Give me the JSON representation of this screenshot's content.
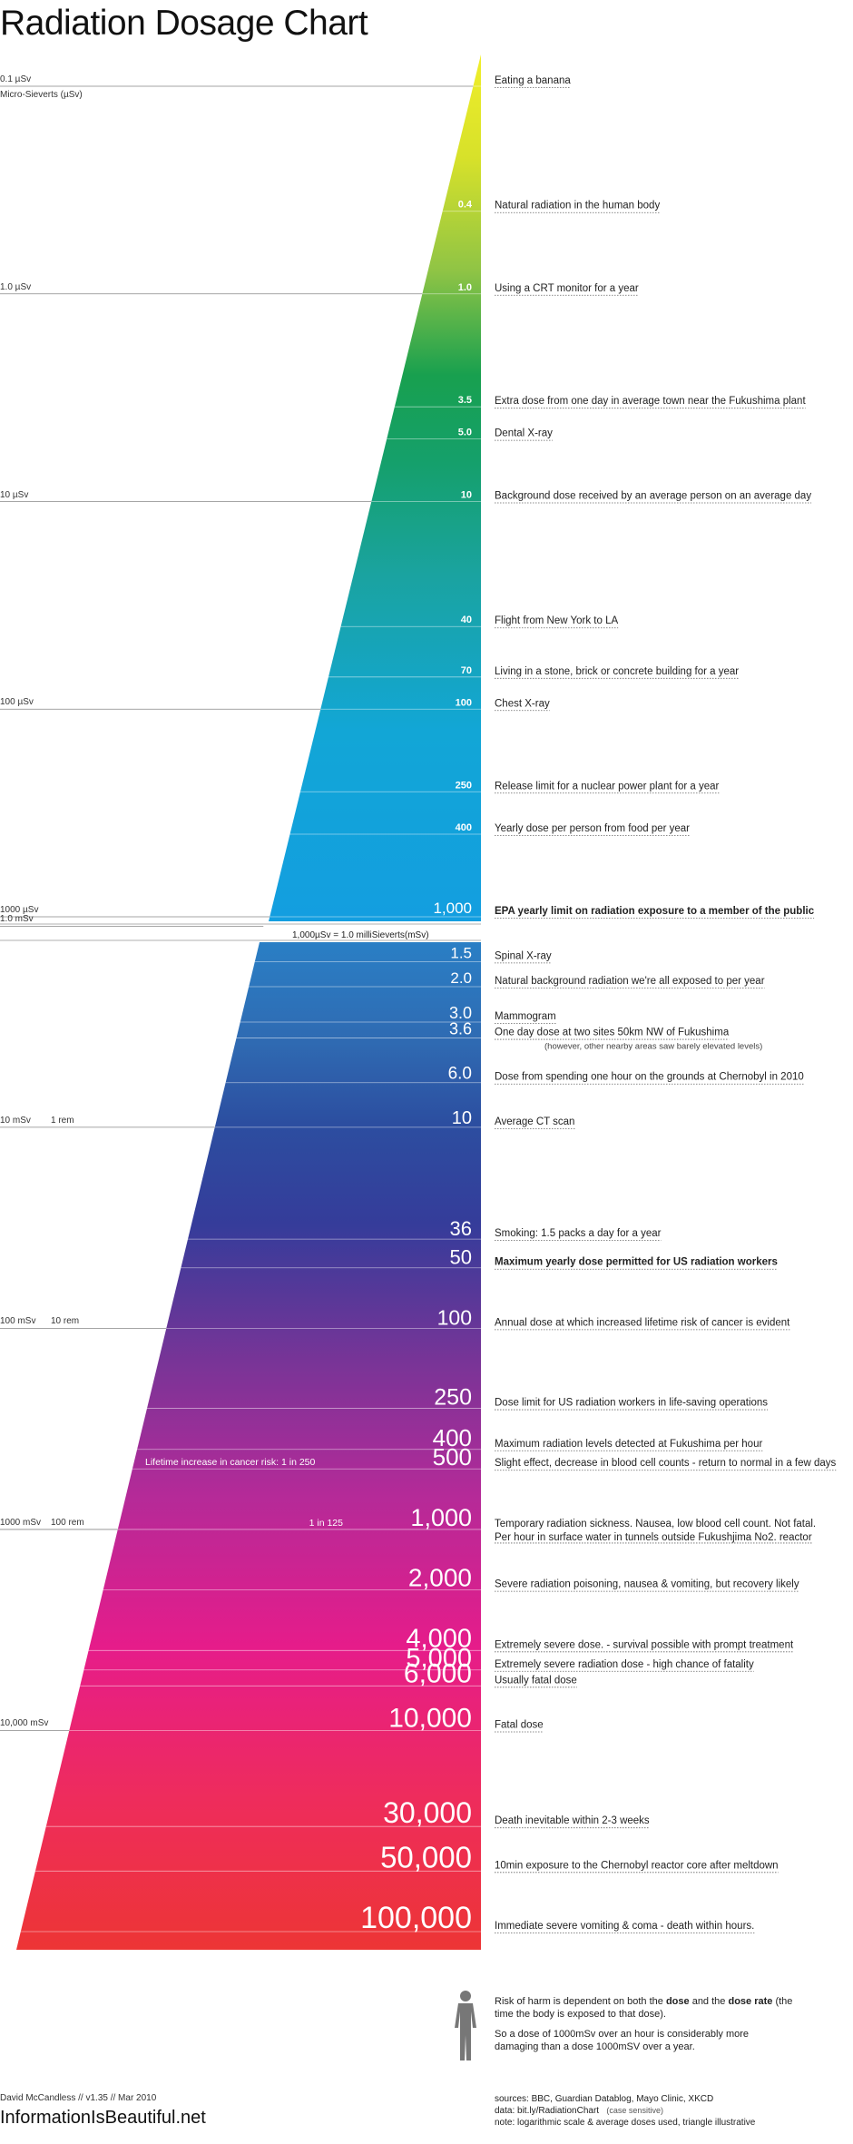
{
  "chart_data": {
    "type": "bar",
    "title": "Radiation Dosage Chart",
    "unit_label": "Micro-Sieverts (µSv)",
    "separator_label": "1,000µSv = 1.0 milliSieverts(mSv)",
    "panels": [
      {
        "name": "micro",
        "scale_labels": [
          {
            "label": "0.1 µSv",
            "value": 0.1
          },
          {
            "label": "1.0 µSv",
            "value": 1
          },
          {
            "label": "10 µSv",
            "value": 10
          },
          {
            "label": "100 µSv",
            "value": 100
          },
          {
            "label": "1000 µSv",
            "value": 1000
          }
        ],
        "items": [
          {
            "value": 0.1,
            "label": ".1",
            "desc": "Eating a banana"
          },
          {
            "value": 0.4,
            "label": "0.4",
            "desc": "Natural radiation in the human body"
          },
          {
            "value": 1.0,
            "label": "1.0",
            "desc": "Using a CRT monitor for a year"
          },
          {
            "value": 3.5,
            "label": "3.5",
            "desc": "Extra dose from one day in average town near the Fukushima plant"
          },
          {
            "value": 5.0,
            "label": "5.0",
            "desc": "Dental X-ray"
          },
          {
            "value": 10,
            "label": "10",
            "desc": "Background dose received by an average person on an average day"
          },
          {
            "value": 40,
            "label": "40",
            "desc": "Flight from New York to LA"
          },
          {
            "value": 70,
            "label": "70",
            "desc": "Living in a stone, brick or concrete building for a year"
          },
          {
            "value": 100,
            "label": "100",
            "desc": "Chest X-ray"
          },
          {
            "value": 250,
            "label": "250",
            "desc": "Release limit for a nuclear power plant for a year"
          },
          {
            "value": 400,
            "label": "400",
            "desc": "Yearly dose per person from food per year"
          },
          {
            "value": 1000,
            "label": "1,000",
            "desc": "EPA yearly limit on radiation exposure to a member of the public",
            "bold": true
          }
        ]
      },
      {
        "name": "milli",
        "scale_labels": [
          {
            "label": "1.0 mSv",
            "value": 1
          },
          {
            "label": "10 mSv",
            "value": 10,
            "rem": "1 rem"
          },
          {
            "label": "100 mSv",
            "value": 100,
            "rem": "10 rem"
          },
          {
            "label": "1000 mSv",
            "value": 1000,
            "rem": "100 rem"
          },
          {
            "label": "10,000 mSv",
            "value": 10000
          }
        ],
        "items": [
          {
            "value": 1.5,
            "label": "1.5",
            "desc": "Spinal X-ray"
          },
          {
            "value": 2.0,
            "label": "2.0",
            "desc": "Natural background radiation we're all exposed to per year"
          },
          {
            "value": 3.0,
            "label": "3.0",
            "desc": "Mammogram"
          },
          {
            "value": 3.6,
            "label": "3.6",
            "desc": "One day dose at two sites 50km NW of Fukushima",
            "desc2": "(however, other nearby areas saw barely elevated levels)"
          },
          {
            "value": 6.0,
            "label": "6.0",
            "desc": "Dose from spending one hour on the grounds at Chernobyl in 2010"
          },
          {
            "value": 10,
            "label": "10",
            "desc": "Average CT scan"
          },
          {
            "value": 36,
            "label": "36",
            "desc": "Smoking: 1.5 packs a day for a year"
          },
          {
            "value": 50,
            "label": "50",
            "desc": "Maximum yearly dose permitted for US radiation workers",
            "bold": true
          },
          {
            "value": 100,
            "label": "100",
            "desc": "Annual dose at which increased lifetime risk of cancer is evident"
          },
          {
            "value": 250,
            "label": "250",
            "desc": "Dose limit for US radiation workers in life-saving operations"
          },
          {
            "value": 400,
            "label": "400",
            "desc": "Maximum radiation levels detected at Fukushima per hour"
          },
          {
            "value": 500,
            "label": "500",
            "desc": "Slight effect, decrease in blood cell counts - return to normal in a few days",
            "risk": "Lifetime increase in cancer risk:  1 in 250"
          },
          {
            "value": 1000,
            "label": "1,000",
            "desc": "Temporary radiation sickness. Nausea, low blood cell count. Not fatal.",
            "desc2": "Per hour in surface water in tunnels outside Fukushjima No2. reactor",
            "risk": "1 in 125"
          },
          {
            "value": 2000,
            "label": "2,000",
            "desc": "Severe radiation poisoning, nausea & vomiting, but recovery likely"
          },
          {
            "value": 4000,
            "label": "4,000",
            "desc": "Extremely severe dose. - survival possible with prompt treatment"
          },
          {
            "value": 5000,
            "label": "5,000",
            "desc": "Extremely severe radiation dose - high chance of fatality"
          },
          {
            "value": 6000,
            "label": "6,000",
            "desc": "Usually fatal dose"
          },
          {
            "value": 10000,
            "label": "10,000",
            "desc": "Fatal dose"
          },
          {
            "value": 30000,
            "label": "30,000",
            "desc": "Death inevitable within 2-3 weeks"
          },
          {
            "value": 50000,
            "label": "50,000",
            "desc": "10min exposure to the Chernobyl reactor core after meltdown"
          },
          {
            "value": 100000,
            "label": "100,000",
            "desc": "Immediate severe vomiting  & coma - death within hours."
          }
        ]
      }
    ]
  },
  "notes": {
    "p1_a": "Risk of harm is dependent on both the ",
    "p1_b": "dose",
    "p1_c": " and the ",
    "p1_d": "dose rate",
    "p1_e": " (the time the body is exposed to that dose).",
    "p2": "So a dose of 1000mSv over an hour is considerably more damaging than a dose 1000mSV over a year."
  },
  "footer": {
    "credit": "David McCandless // v1.35 // Mar 2010",
    "site": "InformationIsBeautiful.net",
    "sources": "sources: BBC, Guardian Datablog, Mayo Clinic, XKCD",
    "data": "data: bit.ly/RadiationChart",
    "data_note": "(case sensitive)",
    "note": "note: logarithmic scale & average doses used, triangle illustrative"
  }
}
